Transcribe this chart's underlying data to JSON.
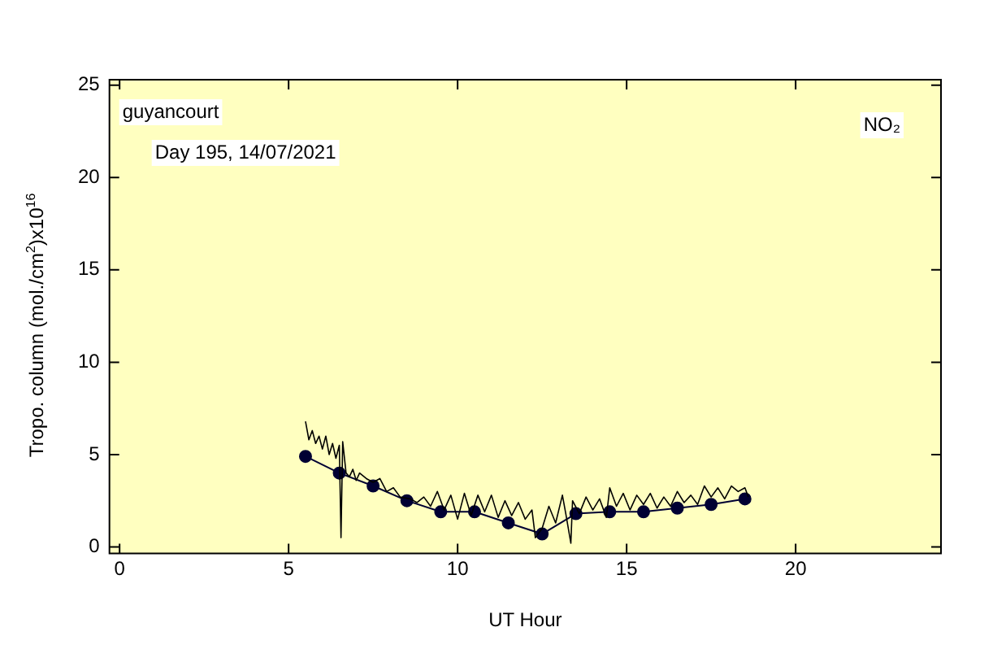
{
  "chart_data": {
    "type": "line",
    "xlabel": "UT Hour",
    "ylabel": "Tropo. column (mol./cm$^{2}$)x10$^{16}$",
    "annotations": [
      "guyancourt",
      "Day 195, 14/07/2021",
      "NO₂"
    ],
    "xlim": [
      -0.3,
      24.3
    ],
    "xticks": [
      0,
      5,
      10,
      15,
      20
    ],
    "ylim": [
      -0.35,
      25.3
    ],
    "yticks": [
      0,
      5,
      10,
      15,
      20,
      25
    ],
    "grid": false,
    "legend": false,
    "series": [
      {
        "color": "#000000",
        "marker": "none",
        "x": [
          5.5,
          5.6,
          5.7,
          5.8,
          5.9,
          6.0,
          6.1,
          6.2,
          6.3,
          6.4,
          6.5,
          6.55,
          6.6,
          6.7,
          6.8,
          6.9,
          7.0,
          7.1,
          7.3,
          7.5,
          7.7,
          7.9,
          8.1,
          8.3,
          8.6,
          8.8,
          9.0,
          9.2,
          9.4,
          9.6,
          9.8,
          10.0,
          10.2,
          10.4,
          10.6,
          10.8,
          11.0,
          11.2,
          11.4,
          11.6,
          11.8,
          12.0,
          12.2,
          12.3,
          12.5,
          12.7,
          12.9,
          13.1,
          13.2,
          13.35,
          13.4,
          13.6,
          13.8,
          14.0,
          14.2,
          14.4,
          14.5,
          14.7,
          14.9,
          15.1,
          15.3,
          15.5,
          15.7,
          15.9,
          16.1,
          16.3,
          16.5,
          16.7,
          16.9,
          17.1,
          17.3,
          17.5,
          17.7,
          17.9,
          18.1,
          18.3,
          18.5,
          18.6
        ],
        "values": [
          6.8,
          5.8,
          6.3,
          5.6,
          6.0,
          5.3,
          6.0,
          5.0,
          5.6,
          4.8,
          5.5,
          0.5,
          5.7,
          4.0,
          3.8,
          4.2,
          3.6,
          4.0,
          3.7,
          3.5,
          3.7,
          3.0,
          3.2,
          2.7,
          2.6,
          2.4,
          2.7,
          2.2,
          3.0,
          2.0,
          2.8,
          1.5,
          2.9,
          1.7,
          2.8,
          1.9,
          2.8,
          1.6,
          2.5,
          1.7,
          2.4,
          1.5,
          2.0,
          0.5,
          1.0,
          2.2,
          1.3,
          2.8,
          1.8,
          0.2,
          2.5,
          1.8,
          2.7,
          2.0,
          2.6,
          1.6,
          3.2,
          2.2,
          2.9,
          2.0,
          2.8,
          2.3,
          2.9,
          2.1,
          2.7,
          2.2,
          3.0,
          2.4,
          2.8,
          2.3,
          3.3,
          2.7,
          3.2,
          2.6,
          3.3,
          3.0,
          3.2,
          2.7
        ]
      },
      {
        "color": "#000033",
        "marker": "circle",
        "x": [
          5.5,
          6.5,
          7.5,
          8.5,
          9.5,
          10.5,
          11.5,
          12.5,
          13.5,
          14.5,
          15.5,
          16.5,
          17.5,
          18.5
        ],
        "values": [
          4.9,
          4.0,
          3.3,
          2.5,
          1.9,
          1.9,
          1.3,
          0.7,
          1.8,
          1.9,
          1.9,
          2.1,
          2.3,
          2.6
        ]
      }
    ]
  }
}
